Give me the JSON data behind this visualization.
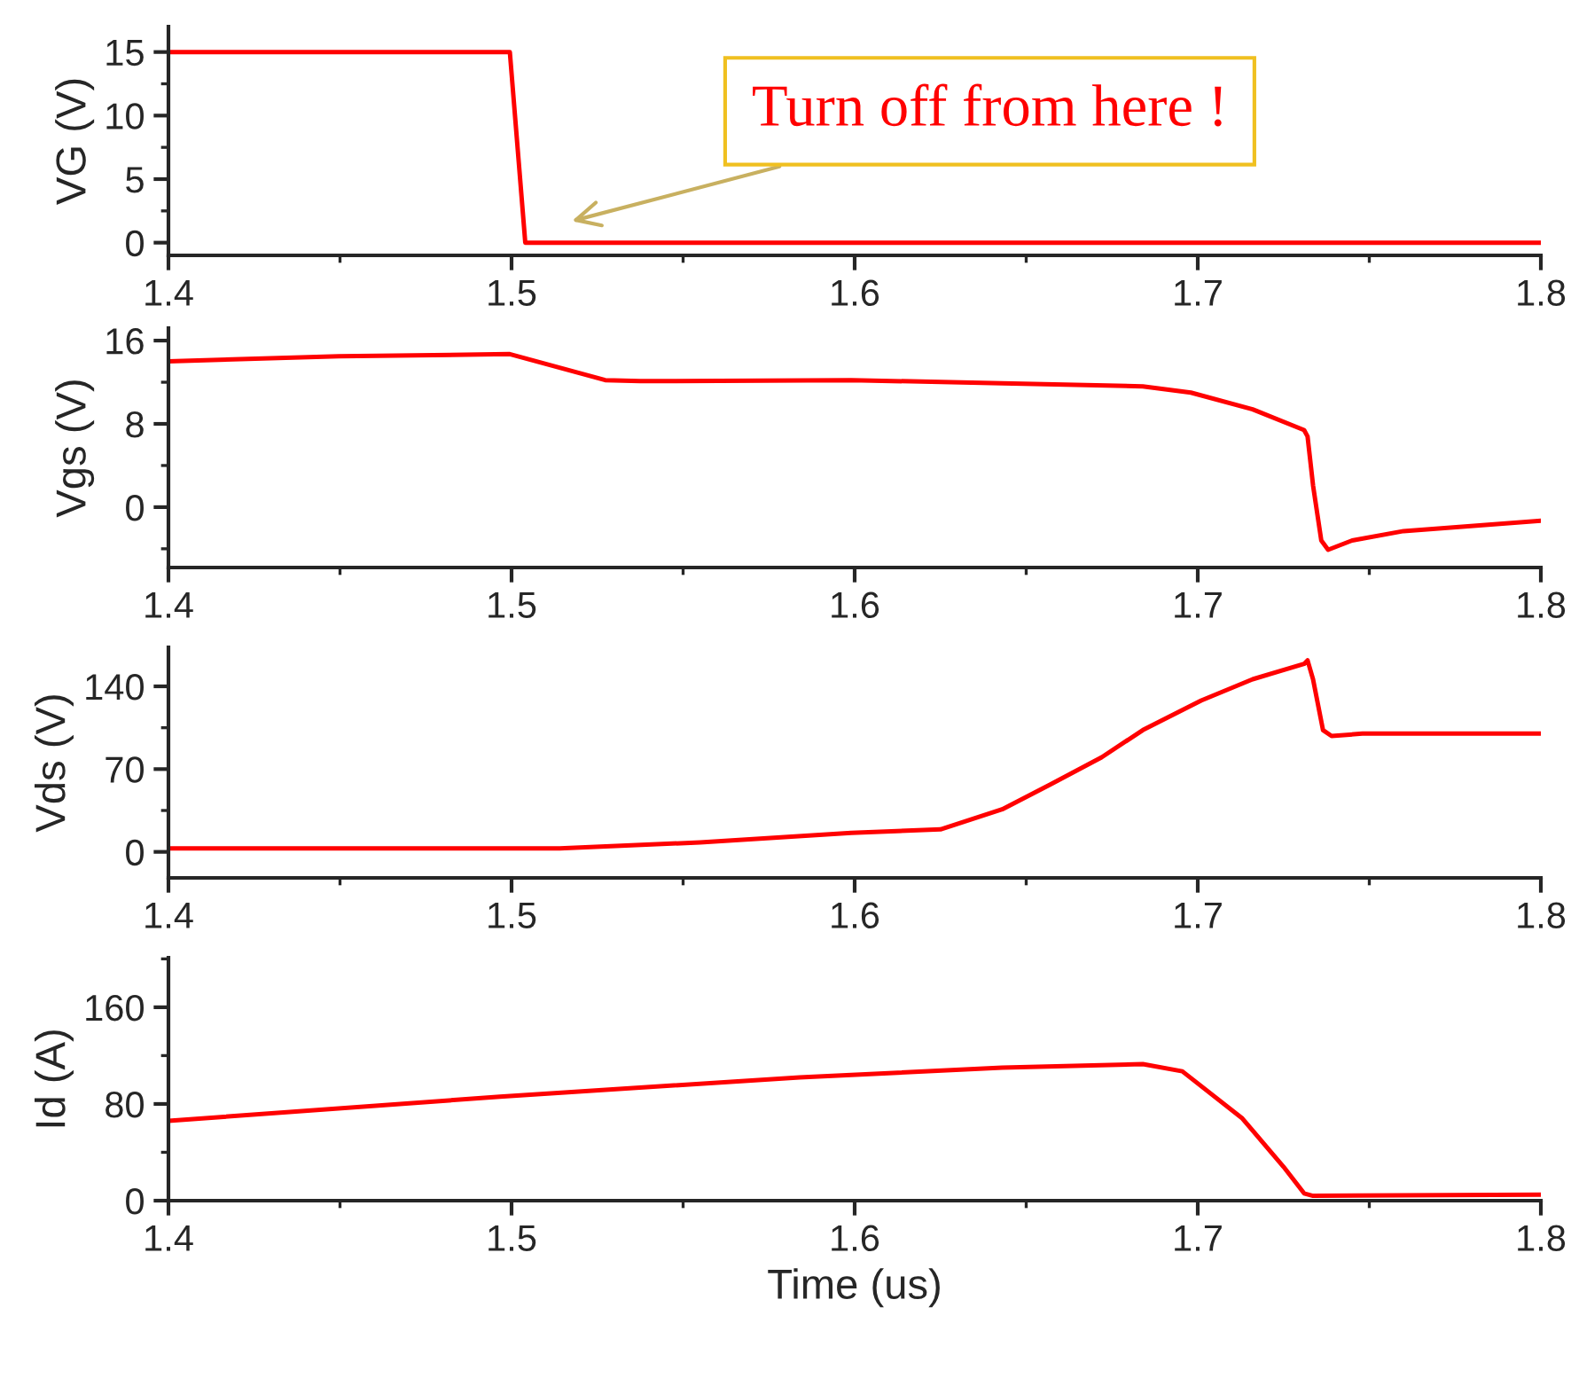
{
  "chart_data": [
    {
      "type": "line",
      "ylabel": "VG (V)",
      "xlim": [
        1.4,
        1.8
      ],
      "xticks": [
        1.4,
        1.5,
        1.6,
        1.7,
        1.8
      ],
      "ylim": [
        -1,
        17
      ],
      "yticks": [
        0,
        5,
        10,
        15
      ],
      "grid": false,
      "legend": false,
      "marker": "none",
      "line_style": "solid",
      "series": [
        {
          "color": "#ff0000",
          "x": [
            1.4,
            1.4995,
            1.504,
            1.8
          ],
          "values": [
            15,
            15,
            0,
            0
          ]
        }
      ],
      "annotations": [
        "Turn off from here !"
      ]
    },
    {
      "type": "line",
      "ylabel": "Vgs (V)",
      "xlim": [
        1.4,
        1.8
      ],
      "xticks": [
        1.4,
        1.5,
        1.6,
        1.7,
        1.8
      ],
      "ylim": [
        -5.8,
        17.2
      ],
      "yticks": [
        0,
        8,
        16
      ],
      "grid": false,
      "legend": false,
      "marker": "none",
      "line_style": "solid",
      "series": [
        {
          "color": "#ff0000",
          "x": [
            1.4,
            1.4497,
            1.4995,
            1.5273,
            1.5375,
            1.599,
            1.643,
            1.684,
            1.698,
            1.716,
            1.731,
            1.732,
            1.7336,
            1.736,
            1.738,
            1.745,
            1.76,
            1.8
          ],
          "values": [
            14.0,
            14.5,
            14.7,
            12.2,
            12.1,
            12.2,
            11.9,
            11.6,
            11.0,
            9.4,
            7.4,
            6.8,
            2.1,
            -3.2,
            -4.1,
            -3.2,
            -2.3,
            -1.3
          ]
        }
      ]
    },
    {
      "type": "line",
      "ylabel": "Vds (V)",
      "xlim": [
        1.4,
        1.8
      ],
      "xticks": [
        1.4,
        1.5,
        1.6,
        1.7,
        1.8
      ],
      "ylim": [
        -22,
        173
      ],
      "yticks": [
        0,
        70,
        140
      ],
      "grid": false,
      "legend": false,
      "marker": "none",
      "line_style": "solid",
      "series": [
        {
          "color": "#ff0000",
          "x": [
            1.4,
            1.514,
            1.555,
            1.599,
            1.625,
            1.643,
            1.657,
            1.672,
            1.684,
            1.701,
            1.716,
            1.731,
            1.732,
            1.7336,
            1.7365,
            1.739,
            1.748,
            1.8
          ],
          "values": [
            3,
            3,
            8,
            16,
            19,
            36,
            57,
            80,
            103,
            128,
            146,
            159,
            162,
            146,
            103,
            98,
            100,
            100
          ]
        }
      ]
    },
    {
      "type": "line",
      "xlabel": "Time (us)",
      "ylabel": "Id (A)",
      "xlim": [
        1.4,
        1.8
      ],
      "xticks": [
        1.4,
        1.5,
        1.6,
        1.7,
        1.8
      ],
      "ylim": [
        0,
        201
      ],
      "yticks": [
        0,
        80,
        160
      ],
      "grid": false,
      "legend": false,
      "marker": "none",
      "line_style": "solid",
      "series": [
        {
          "color": "#ff0000",
          "x": [
            1.4,
            1.4966,
            1.584,
            1.643,
            1.684,
            1.6955,
            1.713,
            1.725,
            1.731,
            1.7336,
            1.8
          ],
          "values": [
            66,
            86,
            102,
            110,
            113,
            107,
            68,
            28,
            6,
            4,
            5
          ]
        }
      ]
    }
  ]
}
